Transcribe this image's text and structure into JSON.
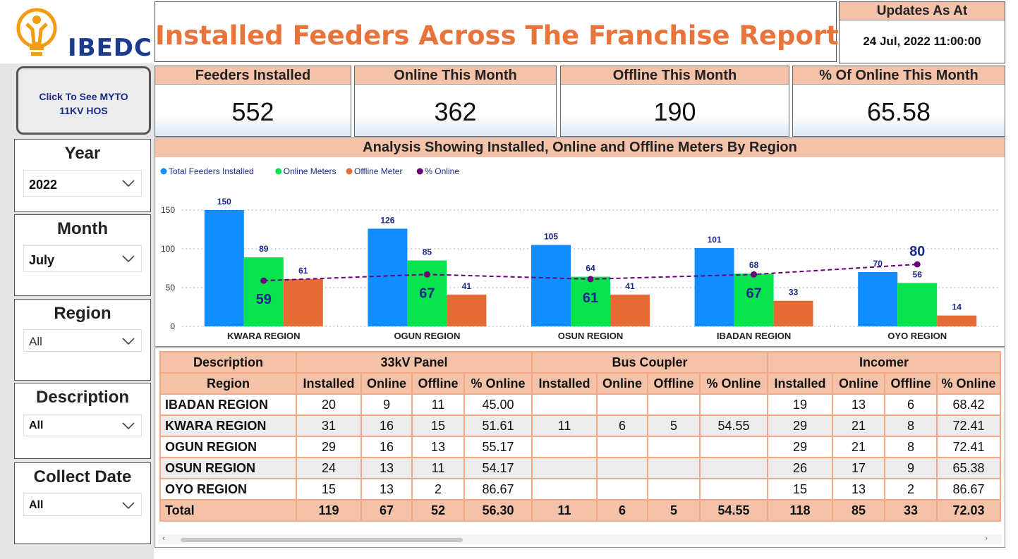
{
  "brand": {
    "logo_text": "IBEDC"
  },
  "title": "Installed Feeders Across The Franchise Report",
  "updates": {
    "label": "Updates As At",
    "value": "24 Jul, 2022 11:00:00"
  },
  "myto_button": {
    "line1": "Click To See MYTO",
    "line2": "11KV HOS"
  },
  "slicers": {
    "year": {
      "title": "Year",
      "value": "2022"
    },
    "month": {
      "title": "Month",
      "value": "July"
    },
    "region": {
      "title": "Region",
      "value": "All"
    },
    "description": {
      "title": "Description",
      "value": "All"
    },
    "collect_date": {
      "title": "Collect Date",
      "value": "All"
    }
  },
  "kpis": [
    {
      "label": "Feeders Installed",
      "value": "552"
    },
    {
      "label": "Online This Month",
      "value": "362"
    },
    {
      "label": "Offline This Month",
      "value": "190"
    },
    {
      "label": "% Of Online This Month",
      "value": "65.58"
    }
  ],
  "colors": {
    "installed": "#118dff",
    "online": "#07e34c",
    "offline": "#e66c37",
    "pct": "#6b007b",
    "header": "#f4c2a8",
    "title": "#e8743b"
  },
  "chart_data": {
    "type": "bar",
    "title": "Analysis Showing Installed, Online and Offline Meters By Region",
    "categories": [
      "KWARA REGION",
      "OGUN REGION",
      "OSUN REGION",
      "IBADAN REGION",
      "OYO REGION"
    ],
    "series": [
      {
        "name": "Total Feeders Installed",
        "values": [
          150,
          126,
          105,
          101,
          70
        ]
      },
      {
        "name": "Online Meters",
        "values": [
          89,
          85,
          64,
          68,
          56
        ]
      },
      {
        "name": "Offline Meter",
        "values": [
          61,
          41,
          41,
          33,
          14
        ]
      },
      {
        "name": "% Online",
        "type": "line",
        "values": [
          59,
          67,
          61,
          67,
          80
        ]
      }
    ],
    "yticks": [
      0,
      50,
      100,
      150
    ],
    "ylim": [
      0,
      150
    ],
    "legend_position": "top-left",
    "grid": true
  },
  "table": {
    "groups": [
      "33kV Panel",
      "Bus Coupler",
      "Incomer"
    ],
    "desc_label": "Description",
    "region_label": "Region",
    "sub_headers": [
      "Installed",
      "Online",
      "Offline",
      "% Online"
    ],
    "rows": [
      {
        "region": "IBADAN REGION",
        "cells": [
          "20",
          "9",
          "11",
          "45.00",
          "",
          "",
          "",
          "",
          "19",
          "13",
          "6",
          "68.42"
        ]
      },
      {
        "region": "KWARA REGION",
        "cells": [
          "31",
          "16",
          "15",
          "51.61",
          "11",
          "6",
          "5",
          "54.55",
          "29",
          "21",
          "8",
          "72.41"
        ]
      },
      {
        "region": "OGUN REGION",
        "cells": [
          "29",
          "16",
          "13",
          "55.17",
          "",
          "",
          "",
          "",
          "29",
          "21",
          "8",
          "72.41"
        ]
      },
      {
        "region": "OSUN REGION",
        "cells": [
          "24",
          "13",
          "11",
          "54.17",
          "",
          "",
          "",
          "",
          "26",
          "17",
          "9",
          "65.38"
        ]
      },
      {
        "region": "OYO REGION",
        "cells": [
          "15",
          "13",
          "2",
          "86.67",
          "",
          "",
          "",
          "",
          "15",
          "13",
          "2",
          "86.67"
        ]
      }
    ],
    "total": {
      "label": "Total",
      "cells": [
        "119",
        "67",
        "52",
        "56.30",
        "11",
        "6",
        "5",
        "54.55",
        "118",
        "85",
        "33",
        "72.03"
      ]
    }
  }
}
